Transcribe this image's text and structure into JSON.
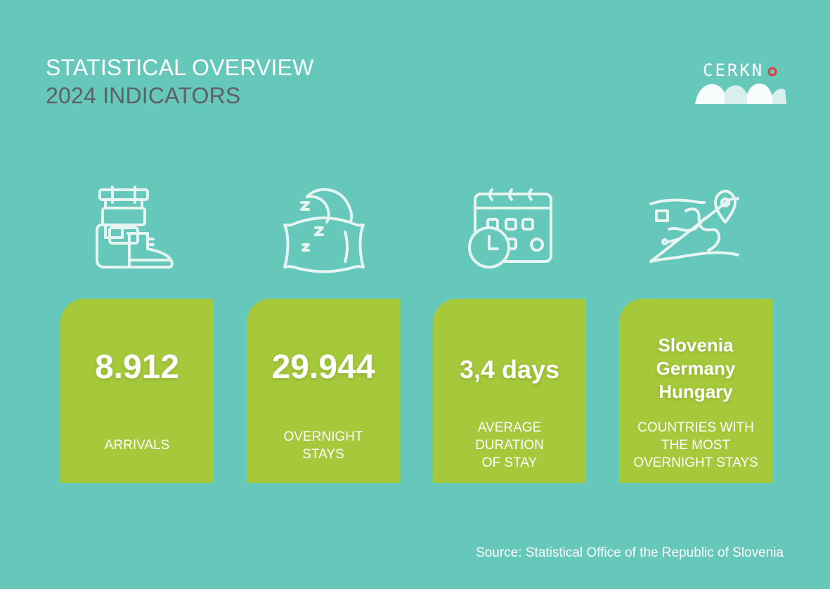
{
  "header": {
    "title": "STATISTICAL OVERVIEW",
    "subtitle": "2024 INDICATORS"
  },
  "logo": {
    "text": "CERKN",
    "accent_color": "#e23a3a"
  },
  "colors": {
    "background": "#66c7bb",
    "card": "#a6c83b",
    "icon_stroke": "#e6f5f2",
    "subtitle": "#5c6264"
  },
  "cards": [
    {
      "icon": "backpack-boot-icon",
      "value": "8.912",
      "label": "ARRIVALS"
    },
    {
      "icon": "pillow-moon-icon",
      "value": "29.944",
      "label": "OVERNIGHT\nSTAYS"
    },
    {
      "icon": "calendar-clock-icon",
      "value": "3,4 days",
      "label": "AVERAGE\nDURATION\nOF STAY"
    },
    {
      "icon": "map-pin-icon",
      "values": [
        "Slovenia",
        "Germany",
        "Hungary"
      ],
      "label": "COUNTRIES WITH\nTHE MOST\nOVERNIGHT STAYS"
    }
  ],
  "footer": {
    "source": "Source: Statistical Office of the Republic of Slovenia"
  }
}
